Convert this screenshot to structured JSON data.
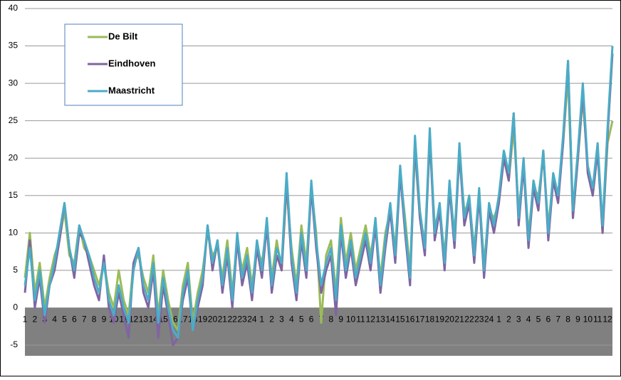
{
  "chart_data": {
    "type": "line",
    "categories": [
      "1",
      null,
      "2",
      null,
      "3",
      null,
      "4",
      null,
      "5",
      null,
      "6",
      null,
      "7",
      null,
      "8",
      null,
      "9",
      null,
      "10",
      null,
      "11",
      null,
      "12",
      null,
      "13",
      null,
      "14",
      null,
      "15",
      null,
      "16",
      null,
      "17",
      null,
      "18",
      null,
      "19",
      null,
      "20",
      null,
      "21",
      null,
      "22",
      null,
      "23",
      null,
      "24",
      null,
      "1",
      null,
      "2",
      null,
      "3",
      null,
      "4",
      null,
      "5",
      null,
      "6",
      null,
      "7",
      null,
      "8",
      null,
      "9",
      null,
      "10",
      null,
      "11",
      null,
      "12",
      null,
      "13",
      null,
      "14",
      null,
      "15",
      null,
      "16",
      null,
      "17",
      null,
      "18",
      null,
      "19",
      null,
      "20",
      null,
      "21",
      null,
      "22",
      null,
      "23",
      null,
      "24",
      null,
      "1",
      null,
      "2",
      null,
      "3",
      null,
      "4",
      null,
      "5",
      null,
      "6",
      null,
      "7",
      null,
      "8",
      null,
      "9",
      null,
      "10",
      null,
      "11",
      null,
      "12",
      null
    ],
    "series": [
      {
        "name": "De Bilt",
        "color": "#9bbb59",
        "values": [
          4,
          10,
          2,
          6,
          0,
          4,
          7,
          9,
          13,
          7,
          6,
          11,
          8,
          7,
          5,
          3,
          6,
          2,
          0,
          5,
          1,
          -1,
          6,
          7,
          4,
          2,
          7,
          -1,
          5,
          1,
          -2,
          -3,
          3,
          6,
          -2,
          2,
          5,
          10,
          7,
          8,
          4,
          9,
          2,
          9,
          5,
          8,
          3,
          8,
          6,
          11,
          4,
          9,
          5,
          16,
          8,
          3,
          11,
          6,
          16,
          10,
          -2,
          7,
          9,
          2,
          12,
          6,
          10,
          5,
          8,
          11,
          7,
          11,
          4,
          10,
          13,
          8,
          18,
          12,
          5,
          21,
          12,
          9,
          22,
          11,
          13,
          7,
          16,
          10,
          20,
          13,
          14,
          8,
          15,
          6,
          13,
          12,
          14,
          20,
          17,
          24,
          13,
          19,
          10,
          16,
          15,
          20,
          11,
          17,
          15,
          22,
          31,
          12,
          20,
          28,
          19,
          15,
          21,
          10,
          22,
          25
        ]
      },
      {
        "name": "Eindhoven",
        "color": "#8064a2",
        "values": [
          2,
          9,
          0,
          4,
          -2,
          3,
          5,
          9,
          14,
          8,
          4,
          10,
          9,
          6,
          3,
          1,
          7,
          0,
          -2,
          2,
          -1,
          -4,
          6,
          8,
          2,
          0,
          5,
          -4,
          3,
          -1,
          -5,
          -4,
          1,
          4,
          -3,
          0,
          3,
          11,
          5,
          9,
          2,
          7,
          0,
          9,
          3,
          6,
          1,
          8,
          4,
          11,
          2,
          7,
          5,
          17,
          6,
          1,
          9,
          4,
          16,
          8,
          2,
          5,
          7,
          -1,
          10,
          4,
          8,
          3,
          6,
          9,
          5,
          11,
          2,
          8,
          13,
          6,
          18,
          10,
          3,
          22,
          12,
          7,
          23,
          9,
          13,
          5,
          16,
          8,
          21,
          11,
          14,
          6,
          15,
          4,
          13,
          10,
          14,
          20,
          17,
          26,
          11,
          19,
          8,
          16,
          13,
          21,
          9,
          17,
          14,
          22,
          33,
          12,
          20,
          29,
          18,
          15,
          21,
          10,
          23,
          34
        ]
      },
      {
        "name": "Maastricht",
        "color": "#4bacc6",
        "values": [
          3,
          8,
          1,
          5,
          -1,
          3,
          6,
          10,
          14,
          8,
          5,
          11,
          9,
          7,
          4,
          2,
          6,
          1,
          -1,
          3,
          0,
          -2,
          5,
          8,
          3,
          1,
          6,
          -2,
          4,
          0,
          -3,
          -4,
          2,
          5,
          -3,
          1,
          4,
          11,
          6,
          9,
          3,
          8,
          1,
          10,
          4,
          7,
          2,
          9,
          5,
          12,
          3,
          8,
          6,
          18,
          7,
          2,
          10,
          5,
          17,
          9,
          3,
          6,
          8,
          1,
          11,
          5,
          9,
          4,
          7,
          10,
          6,
          12,
          3,
          9,
          14,
          7,
          19,
          11,
          4,
          23,
          13,
          8,
          24,
          10,
          14,
          6,
          17,
          9,
          22,
          12,
          15,
          7,
          16,
          5,
          14,
          11,
          15,
          21,
          18,
          26,
          12,
          20,
          9,
          17,
          14,
          21,
          10,
          18,
          15,
          23,
          33,
          13,
          21,
          30,
          19,
          16,
          22,
          11,
          24,
          35
        ]
      }
    ],
    "ylim": [
      -5,
      40
    ],
    "yticks": [
      -5,
      0,
      5,
      10,
      15,
      20,
      25,
      30,
      35,
      40
    ],
    "grid": true,
    "legend": "top-left"
  }
}
